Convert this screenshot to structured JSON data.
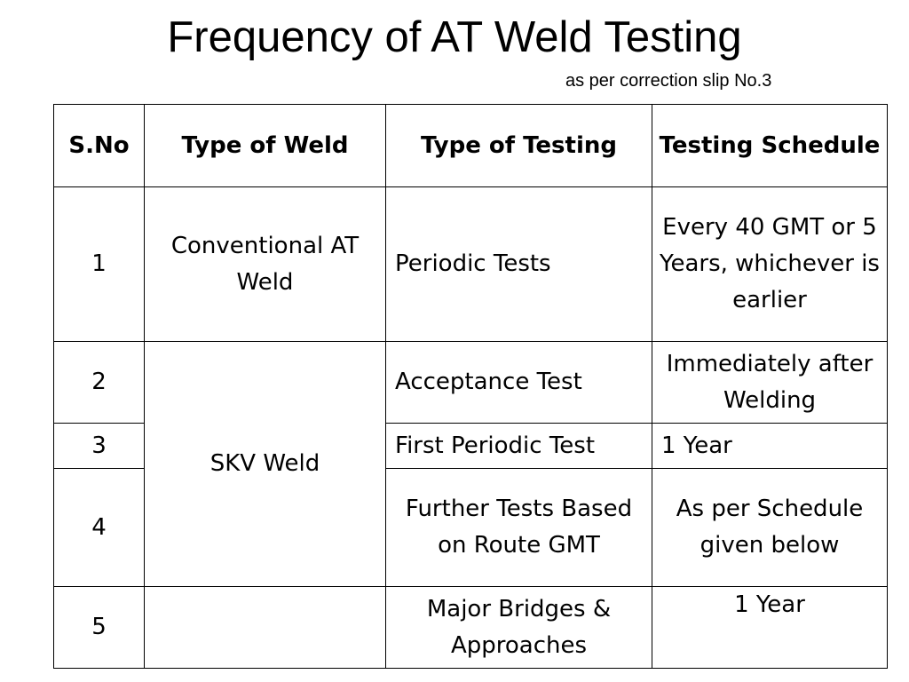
{
  "page": {
    "title": "Frequency of AT Weld Testing",
    "subtitle": "as per correction slip No.3"
  },
  "table": {
    "headers": {
      "sno": "S.No",
      "weld": "Type of Weld",
      "testing": "Type  of Testing",
      "schedule": "Testing Schedule"
    },
    "rows": [
      {
        "sno": "1",
        "weld": "Conventional AT Weld",
        "testing": "Periodic Tests",
        "schedule": "Every 40 GMT or 5 Years, whichever is earlier"
      },
      {
        "sno": "2",
        "weld": "SKV Weld",
        "testing": "Acceptance Test",
        "schedule": "Immediately after Welding"
      },
      {
        "sno": "3",
        "testing": "First Periodic Test",
        "schedule": "1 Year"
      },
      {
        "sno": "4",
        "testing": "Further Tests Based on Route GMT",
        "schedule": "As per Schedule given below"
      },
      {
        "sno": "5",
        "weld": "",
        "testing": "Major Bridges & Approaches",
        "schedule": "1 Year"
      }
    ]
  }
}
